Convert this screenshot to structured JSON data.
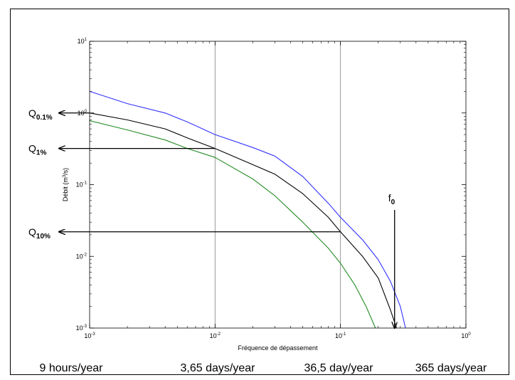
{
  "chart_data": {
    "type": "line",
    "x_scale": "log",
    "y_scale": "log",
    "xlim": [
      0.001,
      1
    ],
    "ylim": [
      0.001,
      10
    ],
    "xlabel": "Fréquence de dépassement",
    "ylabel": "Débit (m³/s)",
    "ylabel_parts": {
      "pre": "Débit (m",
      "sup": "3",
      "post": "/s)"
    },
    "x_ticks": [
      {
        "value": 0.001,
        "base": "10",
        "exp": "-3"
      },
      {
        "value": 0.01,
        "base": "10",
        "exp": "-2"
      },
      {
        "value": 0.1,
        "base": "10",
        "exp": "-1"
      },
      {
        "value": 1,
        "base": "10",
        "exp": "0"
      }
    ],
    "y_ticks": [
      {
        "value": 0.001,
        "base": "10",
        "exp": "-3"
      },
      {
        "value": 0.01,
        "base": "10",
        "exp": "-2"
      },
      {
        "value": 0.1,
        "base": "10",
        "exp": "-1"
      },
      {
        "value": 1,
        "base": "10",
        "exp": "0"
      },
      {
        "value": 10,
        "base": "10",
        "exp": "1"
      }
    ],
    "vertical_gridlines_at": [
      0.01,
      0.1
    ],
    "series": [
      {
        "color": "#3333ff",
        "points": [
          [
            0.001,
            2.0
          ],
          [
            0.002,
            1.35
          ],
          [
            0.004,
            1.0
          ],
          [
            0.006,
            0.75
          ],
          [
            0.01,
            0.5
          ],
          [
            0.02,
            0.33
          ],
          [
            0.03,
            0.25
          ],
          [
            0.05,
            0.13
          ],
          [
            0.08,
            0.055
          ],
          [
            0.1,
            0.035
          ],
          [
            0.15,
            0.017
          ],
          [
            0.2,
            0.009
          ],
          [
            0.25,
            0.0045
          ],
          [
            0.3,
            0.002
          ],
          [
            0.33,
            0.001
          ]
        ]
      },
      {
        "color": "#000000",
        "points": [
          [
            0.001,
            1.0
          ],
          [
            0.002,
            0.8
          ],
          [
            0.004,
            0.6
          ],
          [
            0.006,
            0.45
          ],
          [
            0.01,
            0.32
          ],
          [
            0.02,
            0.19
          ],
          [
            0.03,
            0.14
          ],
          [
            0.05,
            0.075
          ],
          [
            0.08,
            0.035
          ],
          [
            0.1,
            0.022
          ],
          [
            0.15,
            0.01
          ],
          [
            0.2,
            0.005
          ],
          [
            0.25,
            0.0018
          ],
          [
            0.28,
            0.001
          ]
        ]
      },
      {
        "color": "#228b22",
        "points": [
          [
            0.001,
            0.78
          ],
          [
            0.002,
            0.58
          ],
          [
            0.004,
            0.42
          ],
          [
            0.006,
            0.32
          ],
          [
            0.01,
            0.24
          ],
          [
            0.02,
            0.12
          ],
          [
            0.03,
            0.07
          ],
          [
            0.05,
            0.03
          ],
          [
            0.08,
            0.013
          ],
          [
            0.1,
            0.008
          ],
          [
            0.13,
            0.004
          ],
          [
            0.16,
            0.002
          ],
          [
            0.19,
            0.001
          ]
        ]
      }
    ],
    "annotations": [
      {
        "base": "Q",
        "sub": "0.1%",
        "y_value": 1.0,
        "x_end": 0.001
      },
      {
        "base": "Q",
        "sub": "1%",
        "y_value": 0.32,
        "x_end": 0.01
      },
      {
        "base": "Q",
        "sub": "10%",
        "y_value": 0.022,
        "x_end": 0.1
      }
    ],
    "f0": {
      "base": "f",
      "sub": "0",
      "x_value": 0.27
    },
    "bottom_labels": [
      "9 hours/year",
      "3,65 days/year",
      "36,5 day/year",
      "365 days/year"
    ]
  }
}
